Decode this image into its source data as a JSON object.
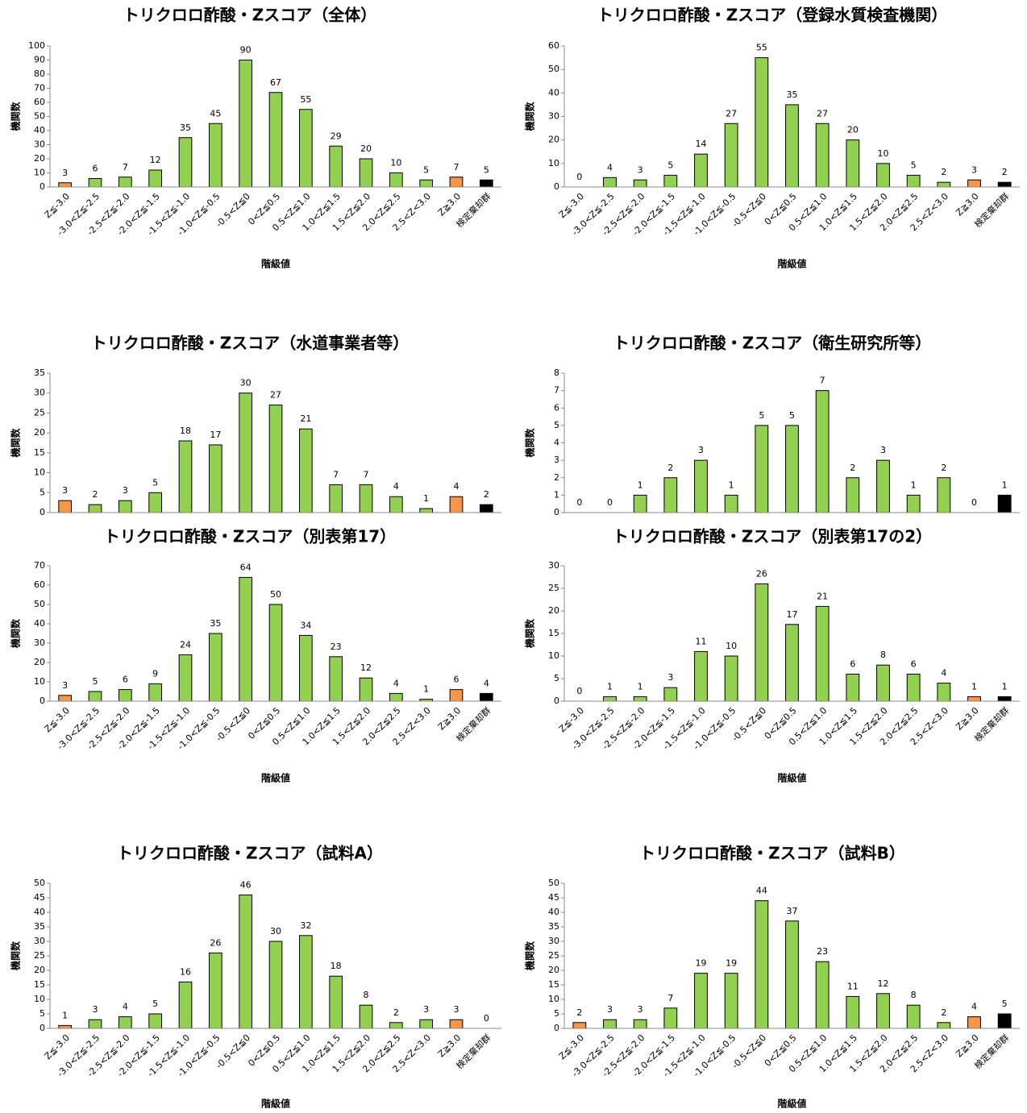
{
  "chart_data": [
    {
      "type": "bar",
      "title": "トリクロロ酢酸・Zスコア（全体）",
      "y_label": "機関数",
      "x_label": "階級値",
      "categories": [
        "Z≦-3.0",
        "-3.0<Z≦-2.5",
        "-2.5<Z≦-2.0",
        "-2.0<Z≦-1.5",
        "-1.5<Z≦-1.0",
        "-1.0<Z≦-0.5",
        "-0.5<Z≦0",
        "0<Z≦0.5",
        "0.5<Z≦1.0",
        "1.0<Z≦1.5",
        "1.5<Z≦2.0",
        "2.0<Z≦2.5",
        "2.5<Z<3.0",
        "Z≧3.0",
        "検定棄却群"
      ],
      "values": [
        3,
        6,
        7,
        12,
        35,
        45,
        90,
        67,
        55,
        29,
        20,
        10,
        5,
        7,
        5
      ],
      "colors": [
        "#f79646",
        "#92d050",
        "#92d050",
        "#92d050",
        "#92d050",
        "#92d050",
        "#92d050",
        "#92d050",
        "#92d050",
        "#92d050",
        "#92d050",
        "#92d050",
        "#92d050",
        "#f79646",
        "#000000"
      ],
      "ylim": [
        0,
        100
      ],
      "yticks": [
        0,
        10,
        20,
        30,
        40,
        50,
        60,
        70,
        80,
        90,
        100
      ]
    },
    {
      "type": "bar",
      "title": "トリクロロ酢酸・Zスコア（登録水質検査機関）",
      "y_label": "機関数",
      "x_label": "階級値",
      "categories": [
        "Z≦-3.0",
        "-3.0<Z≦-2.5",
        "-2.5<Z≦-2.0",
        "-2.0<Z≦-1.5",
        "-1.5<Z≦-1.0",
        "-1.0<Z≦-0.5",
        "-0.5<Z≦0",
        "0<Z≦0.5",
        "0.5<Z≦1.0",
        "1.0<Z≦1.5",
        "1.5<Z≦2.0",
        "2.0<Z≦2.5",
        "2.5<Z<3.0",
        "Z≧3.0",
        "検定棄却群"
      ],
      "values": [
        0,
        4,
        3,
        5,
        14,
        27,
        55,
        35,
        27,
        20,
        10,
        5,
        2,
        3,
        2
      ],
      "colors": [
        "#f79646",
        "#92d050",
        "#92d050",
        "#92d050",
        "#92d050",
        "#92d050",
        "#92d050",
        "#92d050",
        "#92d050",
        "#92d050",
        "#92d050",
        "#92d050",
        "#92d050",
        "#f79646",
        "#000000"
      ],
      "ylim": [
        0,
        60
      ],
      "yticks": [
        0,
        10,
        20,
        30,
        40,
        50,
        60
      ]
    },
    {
      "type": "bar",
      "title": "トリクロロ酢酸・Zスコア（水道事業者等）",
      "y_label": "機関数",
      "categories": [
        null,
        null,
        null,
        null,
        null,
        null,
        null,
        null,
        null,
        null,
        null,
        null,
        null,
        null,
        null
      ],
      "values": [
        3,
        2,
        3,
        5,
        18,
        17,
        30,
        27,
        21,
        7,
        7,
        4,
        1,
        4,
        2
      ],
      "colors": [
        "#f79646",
        "#92d050",
        "#92d050",
        "#92d050",
        "#92d050",
        "#92d050",
        "#92d050",
        "#92d050",
        "#92d050",
        "#92d050",
        "#92d050",
        "#92d050",
        "#92d050",
        "#f79646",
        "#000000"
      ],
      "ylim": [
        0,
        35
      ],
      "yticks": [
        0,
        5,
        10,
        15,
        20,
        25,
        30,
        35
      ]
    },
    {
      "type": "bar",
      "title": "トリクロロ酢酸・Zスコア（衛生研究所等）",
      "y_label": "機関数",
      "categories": [
        null,
        null,
        null,
        null,
        null,
        null,
        null,
        null,
        null,
        null,
        null,
        null,
        null,
        null,
        null
      ],
      "values": [
        0,
        0,
        1,
        2,
        3,
        1,
        5,
        5,
        7,
        2,
        3,
        1,
        2,
        0,
        1
      ],
      "colors": [
        "#f79646",
        "#92d050",
        "#92d050",
        "#92d050",
        "#92d050",
        "#92d050",
        "#92d050",
        "#92d050",
        "#92d050",
        "#92d050",
        "#92d050",
        "#92d050",
        "#92d050",
        "#f79646",
        "#000000"
      ],
      "ylim": [
        0,
        8
      ],
      "yticks": [
        0,
        1,
        2,
        3,
        4,
        5,
        6,
        7,
        8
      ]
    },
    {
      "type": "bar",
      "title": "トリクロロ酢酸・Zスコア（別表第17）",
      "y_label": "機関数",
      "x_label": "階級値",
      "categories": [
        "Z≦-3.0",
        "-3.0<Z≦-2.5",
        "-2.5<Z≦-2.0",
        "-2.0<Z≦-1.5",
        "-1.5<Z≦-1.0",
        "-1.0<Z≦-0.5",
        "-0.5<Z≦0",
        "0<Z≦0.5",
        "0.5<Z≦1.0",
        "1.0<Z≦1.5",
        "1.5<Z≦2.0",
        "2.0<Z≦2.5",
        "2.5<Z<3.0",
        "Z≧3.0",
        "検定棄却群"
      ],
      "values": [
        3,
        5,
        6,
        9,
        24,
        35,
        64,
        50,
        34,
        23,
        12,
        4,
        1,
        6,
        4
      ],
      "colors": [
        "#f79646",
        "#92d050",
        "#92d050",
        "#92d050",
        "#92d050",
        "#92d050",
        "#92d050",
        "#92d050",
        "#92d050",
        "#92d050",
        "#92d050",
        "#92d050",
        "#92d050",
        "#f79646",
        "#000000"
      ],
      "ylim": [
        0,
        70
      ],
      "yticks": [
        0,
        10,
        20,
        30,
        40,
        50,
        60,
        70
      ]
    },
    {
      "type": "bar",
      "title": "トリクロロ酢酸・Zスコア（別表第17の2）",
      "y_label": "機関数",
      "x_label": "階級値",
      "categories": [
        "Z≦-3.0",
        "-3.0<Z≦-2.5",
        "-2.5<Z≦-2.0",
        "-2.0<Z≦-1.5",
        "-1.5<Z≦-1.0",
        "-1.0<Z≦-0.5",
        "-0.5<Z≦0",
        "0<Z≦0.5",
        "0.5<Z≦1.0",
        "1.0<Z≦1.5",
        "1.5<Z≦2.0",
        "2.0<Z≦2.5",
        "2.5<Z<3.0",
        "Z≧3.0",
        "検定棄却群"
      ],
      "values": [
        0,
        1,
        1,
        3,
        11,
        10,
        26,
        17,
        21,
        6,
        8,
        6,
        4,
        1,
        1
      ],
      "colors": [
        "#f79646",
        "#92d050",
        "#92d050",
        "#92d050",
        "#92d050",
        "#92d050",
        "#92d050",
        "#92d050",
        "#92d050",
        "#92d050",
        "#92d050",
        "#92d050",
        "#92d050",
        "#f79646",
        "#000000"
      ],
      "ylim": [
        0,
        30
      ],
      "yticks": [
        0,
        5,
        10,
        15,
        20,
        25,
        30
      ]
    },
    {
      "type": "bar",
      "title": "トリクロロ酢酸・Zスコア（試料A）",
      "y_label": "機関数",
      "x_label": "階級値",
      "categories": [
        "Z≦-3.0",
        "-3.0<Z≦-2.5",
        "-2.5<Z≦-2.0",
        "-2.0<Z≦-1.5",
        "-1.5<Z≦-1.0",
        "-1.0<Z≦-0.5",
        "-0.5<Z≦0",
        "0<Z≦0.5",
        "0.5<Z≦1.0",
        "1.0<Z≦1.5",
        "1.5<Z≦2.0",
        "2.0<Z≦2.5",
        "2.5<Z<3.0",
        "Z≧3.0",
        "検定棄却群"
      ],
      "values": [
        1,
        3,
        4,
        5,
        16,
        26,
        46,
        30,
        32,
        18,
        8,
        2,
        3,
        3,
        0
      ],
      "colors": [
        "#f79646",
        "#92d050",
        "#92d050",
        "#92d050",
        "#92d050",
        "#92d050",
        "#92d050",
        "#92d050",
        "#92d050",
        "#92d050",
        "#92d050",
        "#92d050",
        "#92d050",
        "#f79646",
        "#000000"
      ],
      "ylim": [
        0,
        50
      ],
      "yticks": [
        0,
        5,
        10,
        15,
        20,
        25,
        30,
        35,
        40,
        45,
        50
      ]
    },
    {
      "type": "bar",
      "title": "トリクロロ酢酸・Zスコア（試料B）",
      "y_label": "機関数",
      "x_label": "階級値",
      "categories": [
        "Z≦-3.0",
        "-3.0<Z≦-2.5",
        "-2.5<Z≦-2.0",
        "-2.0<Z≦-1.5",
        "-1.5<Z≦-1.0",
        "-1.0<Z≦-0.5",
        "-0.5<Z≦0",
        "0<Z≦0.5",
        "0.5<Z≦1.0",
        "1.0<Z≦1.5",
        "1.5<Z≦2.0",
        "2.0<Z≦2.5",
        "2.5<Z<3.0",
        "Z≧3.0",
        "検定棄却群"
      ],
      "values": [
        2,
        3,
        3,
        7,
        19,
        19,
        44,
        37,
        23,
        11,
        12,
        8,
        2,
        4,
        5
      ],
      "colors": [
        "#f79646",
        "#92d050",
        "#92d050",
        "#92d050",
        "#92d050",
        "#92d050",
        "#92d050",
        "#92d050",
        "#92d050",
        "#92d050",
        "#92d050",
        "#92d050",
        "#92d050",
        "#f79646",
        "#000000"
      ],
      "ylim": [
        0,
        50
      ],
      "yticks": [
        0,
        5,
        10,
        15,
        20,
        25,
        30,
        35,
        40,
        45,
        50
      ]
    }
  ]
}
